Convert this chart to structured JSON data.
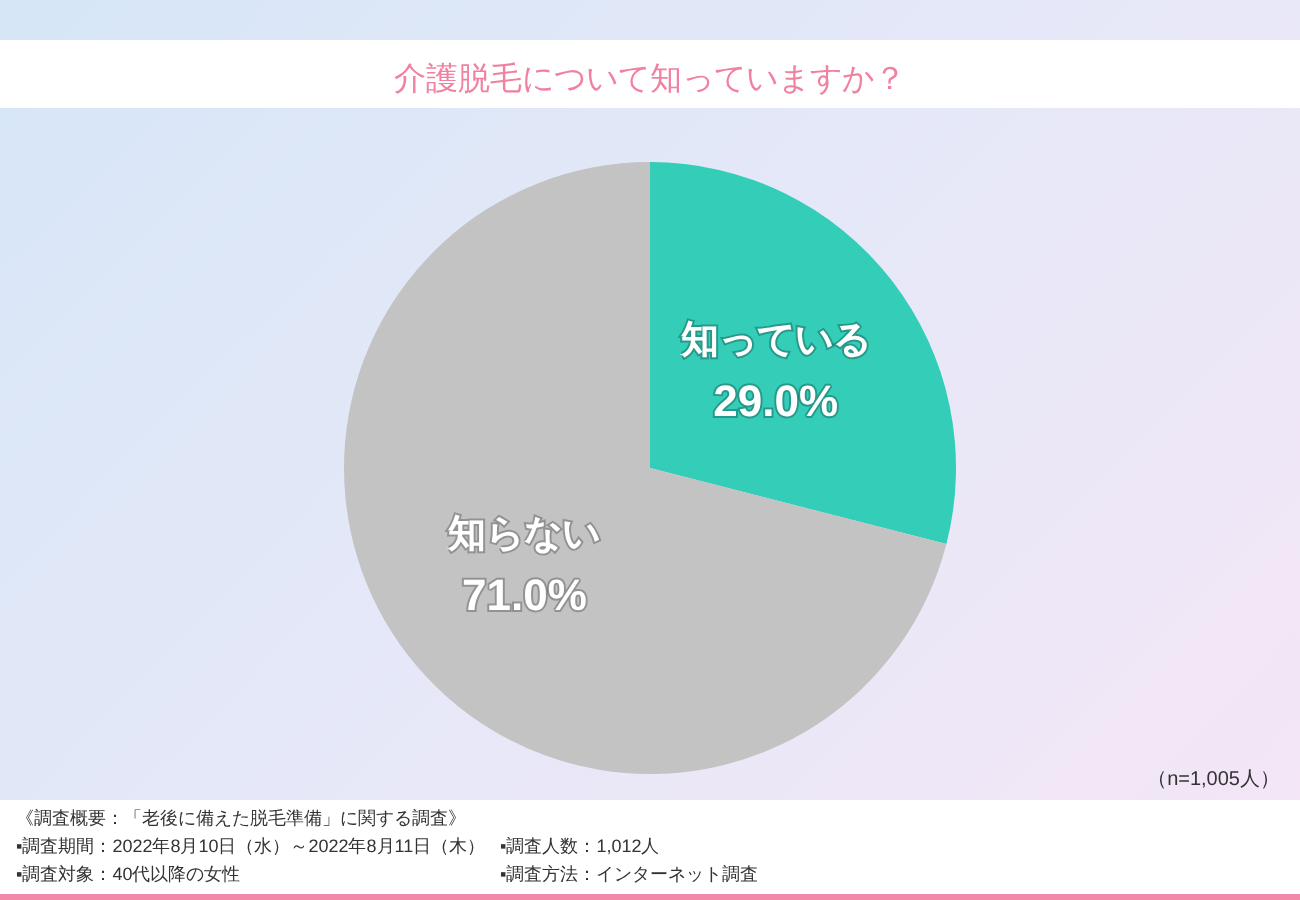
{
  "chart_data": {
    "type": "pie",
    "title": "介護脱毛について知っていますか？",
    "categories": [
      "知っている",
      "知らない"
    ],
    "values": [
      29.0,
      71.0
    ],
    "colors": [
      "#33cdb8",
      "#c3c3c3"
    ],
    "value_labels": [
      "29.0%",
      "71.0%"
    ],
    "annotations": [
      "（n=1,005人）",
      "《調査概要：「老後に備えた脱毛準備」に関する調査》",
      "▪調査期間：2022年8月10日（水）～2022年8月11日（木）",
      "▪調査対象：40代以降の女性",
      "▪調査人数：1,012人",
      "▪調査方法：インターネット調査"
    ]
  }
}
